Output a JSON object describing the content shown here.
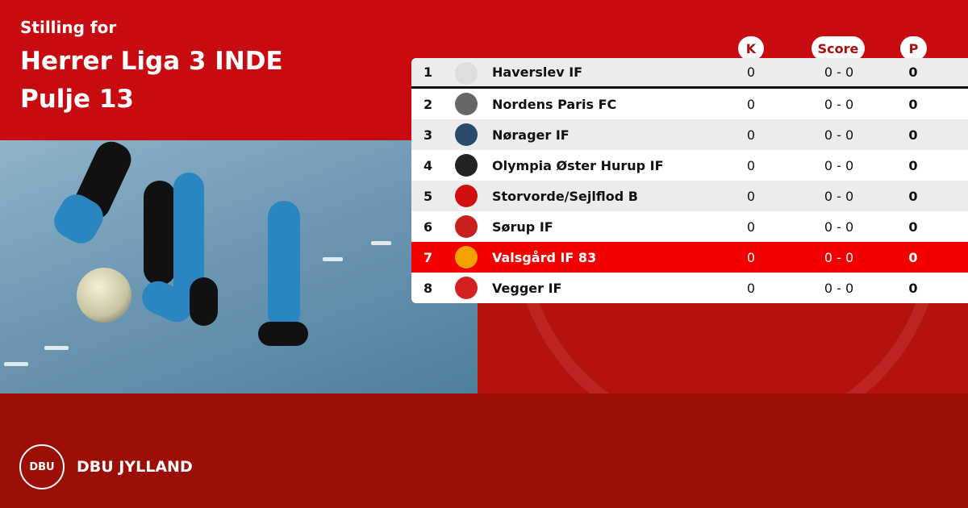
{
  "header": {
    "subtitle": "Stilling for",
    "league": "Herrer Liga 3 INDE",
    "group": "Pulje 13"
  },
  "columns": {
    "k": "K",
    "score": "Score",
    "p": "P"
  },
  "rows": [
    {
      "pos": "1",
      "team": "Haverslev IF",
      "k": "0",
      "score": "0 - 0",
      "p": "0",
      "logo_color": "#dddddd"
    },
    {
      "pos": "2",
      "team": "Nordens Paris FC",
      "k": "0",
      "score": "0 - 0",
      "p": "0",
      "logo_color": "#666666"
    },
    {
      "pos": "3",
      "team": "Nørager IF",
      "k": "0",
      "score": "0 - 0",
      "p": "0",
      "logo_color": "#2b4a6b"
    },
    {
      "pos": "4",
      "team": "Olympia Øster Hurup IF",
      "k": "0",
      "score": "0 - 0",
      "p": "0",
      "logo_color": "#222222"
    },
    {
      "pos": "5",
      "team": "Storvorde/Sejlflod B",
      "k": "0",
      "score": "0 - 0",
      "p": "0",
      "logo_color": "#d01010"
    },
    {
      "pos": "6",
      "team": "Sørup IF",
      "k": "0",
      "score": "0 - 0",
      "p": "0",
      "logo_color": "#c8201a"
    },
    {
      "pos": "7",
      "team": "Valsgård IF 83",
      "k": "0",
      "score": "0 - 0",
      "p": "0",
      "logo_color": "#f5a000",
      "highlight": true
    },
    {
      "pos": "8",
      "team": "Vegger IF",
      "k": "0",
      "score": "0 - 0",
      "p": "0",
      "logo_color": "#d42020"
    }
  ],
  "footer": {
    "logo_text": "DBU",
    "brand": "DBU JYLLAND"
  },
  "colors": {
    "top": "#c70b10",
    "bottom": "#9c0f06",
    "highlight": "#f20000"
  }
}
